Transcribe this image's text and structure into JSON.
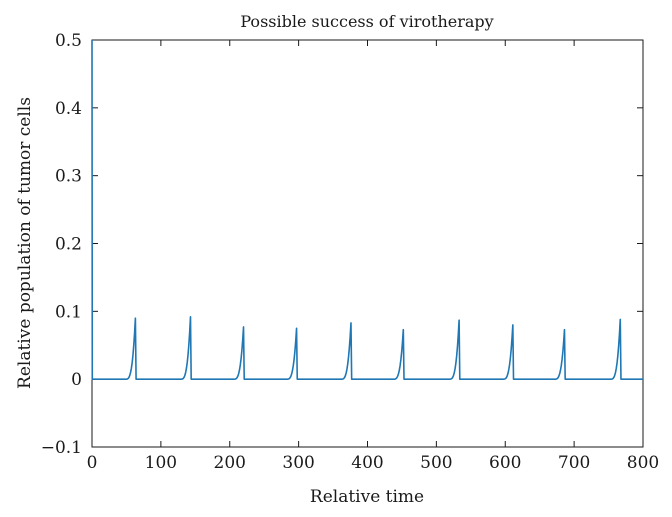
{
  "chart_data": {
    "type": "line",
    "title": "Possible success of virotherapy",
    "xlabel": "Relative time",
    "ylabel": "Relative population of tumor cells",
    "xlim": [
      0,
      800
    ],
    "ylim": [
      -0.1,
      0.5
    ],
    "xticks": [
      0,
      100,
      200,
      300,
      400,
      500,
      600,
      700,
      800
    ],
    "yticks": [
      -0.1,
      0,
      0.1,
      0.2,
      0.3,
      0.4,
      0.5
    ],
    "xtick_labels": [
      "0",
      "100",
      "200",
      "300",
      "400",
      "500",
      "600",
      "700",
      "800"
    ],
    "ytick_labels": [
      "−0.1",
      "0",
      "0.1",
      "0.2",
      "0.3",
      "0.4",
      "0.5"
    ],
    "grid": false,
    "legend": "none",
    "line_color": "#1f77b4",
    "initial_value": 0.5,
    "baseline": 0.0,
    "spikes": [
      {
        "x": 63,
        "peak": 0.09
      },
      {
        "x": 143,
        "peak": 0.092
      },
      {
        "x": 220,
        "peak": 0.077
      },
      {
        "x": 297,
        "peak": 0.075
      },
      {
        "x": 376,
        "peak": 0.083
      },
      {
        "x": 452,
        "peak": 0.073
      },
      {
        "x": 533,
        "peak": 0.087
      },
      {
        "x": 611,
        "peak": 0.08
      },
      {
        "x": 686,
        "peak": 0.073
      },
      {
        "x": 767,
        "peak": 0.088
      }
    ]
  }
}
